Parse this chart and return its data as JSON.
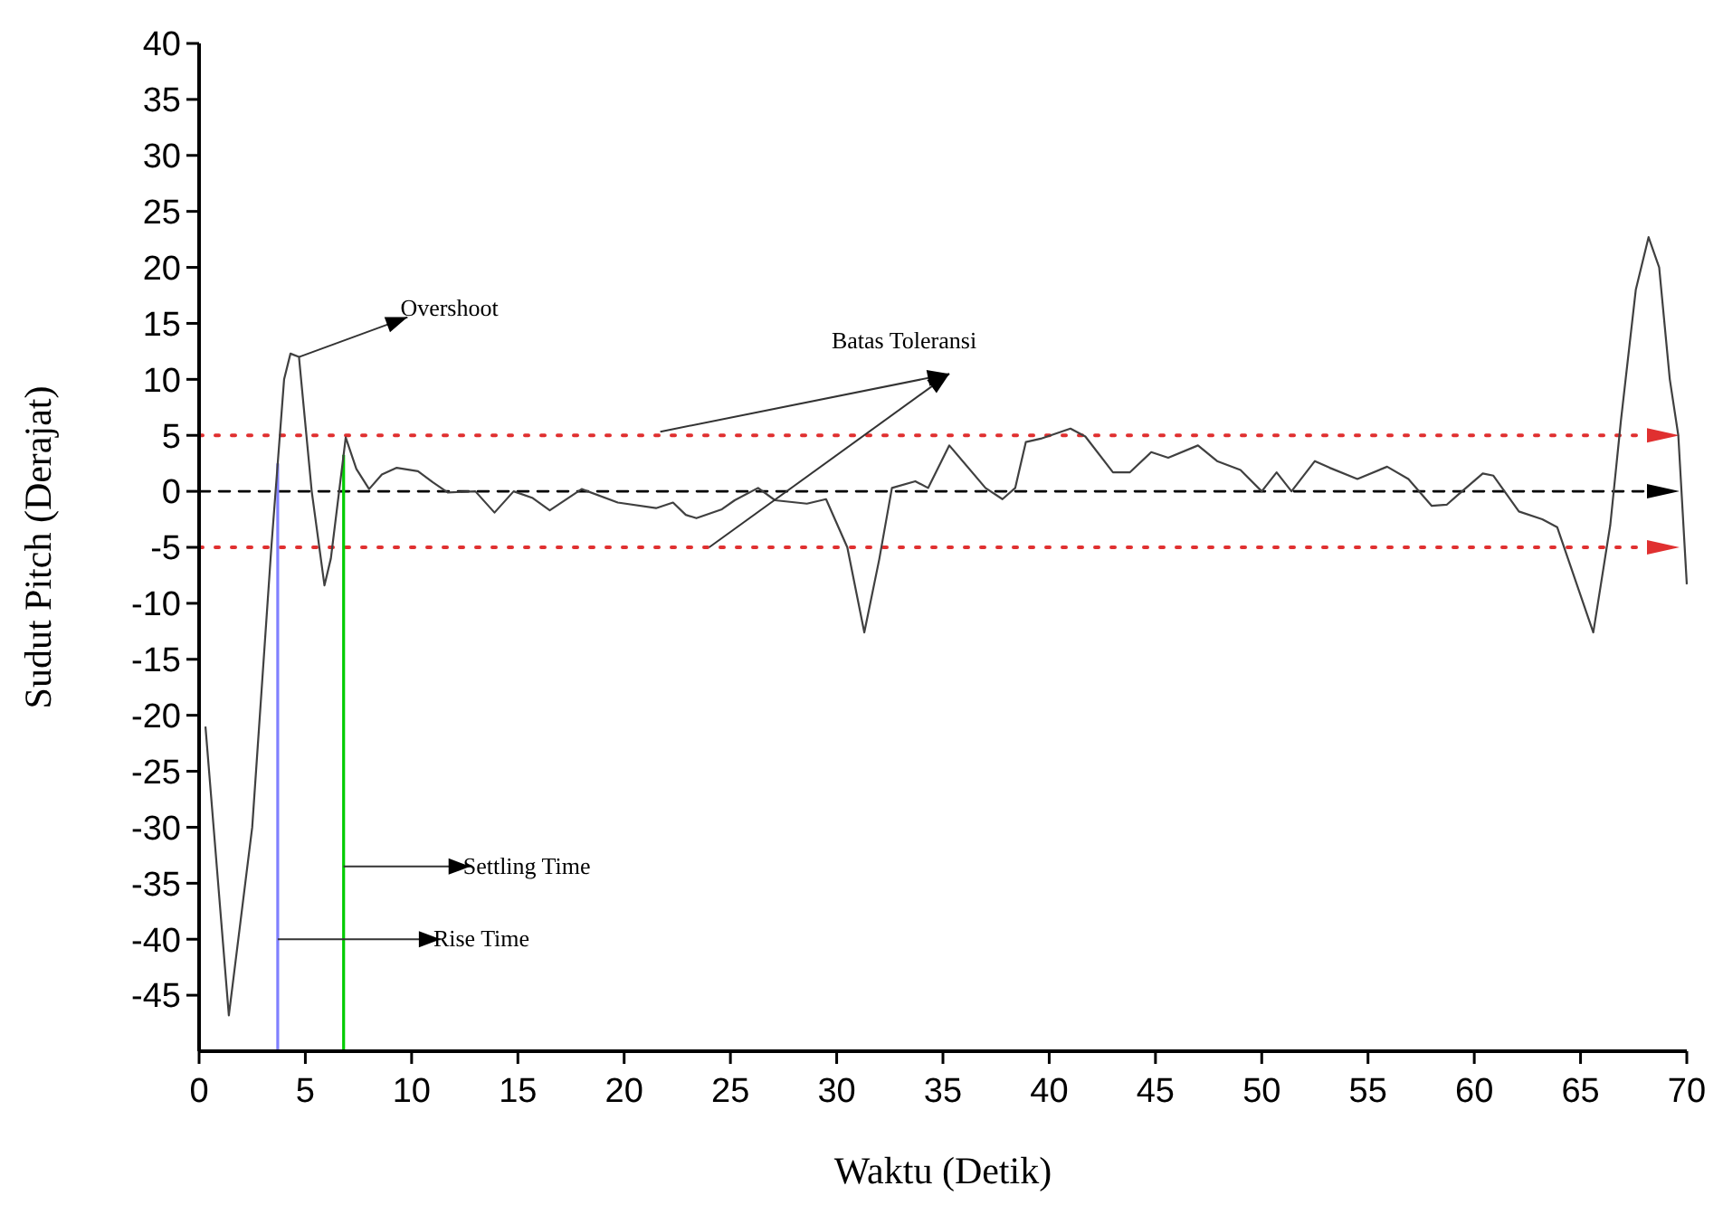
{
  "chart_data": {
    "type": "line",
    "xlabel": "Waktu (Detik)",
    "ylabel": "Sudut Pitch (Derajat)",
    "xlim": [
      0,
      70
    ],
    "ylim": [
      -50,
      40
    ],
    "xticks": [
      0,
      5,
      10,
      15,
      20,
      25,
      30,
      35,
      40,
      45,
      50,
      55,
      60,
      65,
      70
    ],
    "yticks": [
      -45,
      -40,
      -35,
      -30,
      -25,
      -20,
      -15,
      -10,
      -5,
      0,
      5,
      10,
      15,
      20,
      25,
      30,
      35,
      40
    ],
    "grid": false,
    "marker": "none",
    "line_style": "solid",
    "series": [
      {
        "color": "#404040",
        "x": [
          0.3,
          1.4,
          2.5,
          3.4,
          4.0,
          4.3,
          4.7,
          5.3,
          5.9,
          6.2,
          6.9,
          7.4,
          8.0,
          8.6,
          9.3,
          10.3,
          11.0,
          11.7,
          13.0,
          13.9,
          14.8,
          15.7,
          16.5,
          18.0,
          19.7,
          21.5,
          22.3,
          22.9,
          23.4,
          24.6,
          25.2,
          26.3,
          27.1,
          28.6,
          29.5,
          30.5,
          31.3,
          32.0,
          32.6,
          33.7,
          34.3,
          35.3,
          37.0,
          37.8,
          38.4,
          38.9,
          39.6,
          41.0,
          41.7,
          43.0,
          43.8,
          44.8,
          45.6,
          47.0,
          47.9,
          49.0,
          50.0,
          50.7,
          51.4,
          52.5,
          53.2,
          54.5,
          55.9,
          56.9,
          58.0,
          58.7,
          59.3,
          60.4,
          60.9,
          62.1,
          63.2,
          63.9,
          65.6,
          66.4,
          66.9,
          67.6,
          68.2,
          68.7,
          69.2,
          69.6,
          70
        ],
        "values": [
          -21,
          -46.8,
          -30,
          -5,
          10,
          12.3,
          12,
          0,
          -8.4,
          -6,
          4.8,
          2,
          0.2,
          1.5,
          2.1,
          1.8,
          0.8,
          -0.1,
          0,
          -1.9,
          0,
          -0.6,
          -1.7,
          0.2,
          -1,
          -1.5,
          -1,
          -2.1,
          -2.4,
          -1.6,
          -0.8,
          0.3,
          -0.8,
          -1.1,
          -0.7,
          -5,
          -12.6,
          -6.1,
          0.3,
          0.9,
          0.3,
          4.1,
          0.3,
          -0.7,
          0.3,
          4.4,
          4.7,
          5.6,
          4.9,
          1.7,
          1.7,
          3.5,
          3.0,
          4.1,
          2.7,
          1.9,
          0,
          1.7,
          0,
          2.7,
          2.1,
          1.1,
          2.2,
          1.1,
          -1.3,
          -1.2,
          -0.2,
          1.6,
          1.4,
          -1.8,
          -2.5,
          -3.2,
          -12.6,
          -3,
          6.3,
          18,
          22.7,
          20,
          10,
          5,
          -8.3
        ]
      }
    ],
    "ref_lines": [
      {
        "axis": "y",
        "value": 5,
        "color": "#e03030",
        "line_style": "dotted"
      },
      {
        "axis": "y",
        "value": 0,
        "color": "#000000",
        "line_style": "dashed"
      },
      {
        "axis": "y",
        "value": -5,
        "color": "#e03030",
        "line_style": "dotted"
      },
      {
        "axis": "x",
        "value": 3.7,
        "color": "#8080ff",
        "line_style": "solid"
      },
      {
        "axis": "x",
        "value": 6.8,
        "color": "#00cc00",
        "line_style": "solid"
      }
    ],
    "annotations": [
      {
        "text": "Overshoot",
        "x": 4.7,
        "y": 12
      },
      {
        "text": "Batas Toleransi",
        "x": 21.7,
        "y": 5
      },
      {
        "text": "Settling Time",
        "x": 6.8,
        "y": -33.5
      },
      {
        "text": "Rise Time",
        "x": 3.7,
        "y": -40
      }
    ]
  }
}
